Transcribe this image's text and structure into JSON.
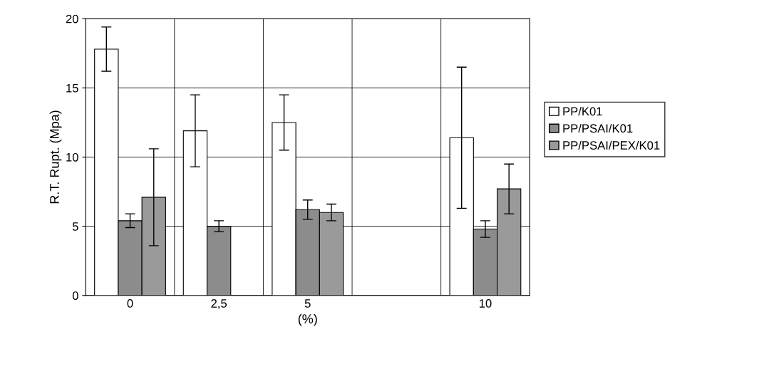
{
  "chart_data": {
    "type": "bar",
    "xlabel": "(%)",
    "ylabel": "R.T. Rupt. (Mpa)",
    "categories": [
      "0",
      "2,5",
      "5",
      null,
      "10"
    ],
    "series": [
      {
        "name": "PP/K01",
        "color": "#ffffff",
        "values": [
          17.8,
          11.9,
          12.5,
          null,
          11.4
        ],
        "errors": [
          1.6,
          2.6,
          2.0,
          null,
          5.1
        ]
      },
      {
        "name": "PP/PSAI/K01",
        "color": "#8c8c8c",
        "values": [
          5.4,
          5.0,
          6.2,
          null,
          4.8
        ],
        "errors": [
          0.5,
          0.4,
          0.7,
          null,
          0.6
        ]
      },
      {
        "name": "PP/PSAI/PEX/K01",
        "color": "#9a9a9a",
        "values": [
          7.1,
          null,
          6.0,
          null,
          7.7
        ],
        "errors": [
          3.5,
          null,
          0.6,
          null,
          1.8
        ]
      }
    ],
    "ylim": [
      0,
      20
    ],
    "yticks": [
      0,
      5,
      10,
      15,
      20
    ],
    "grid": true,
    "legend": "right"
  }
}
